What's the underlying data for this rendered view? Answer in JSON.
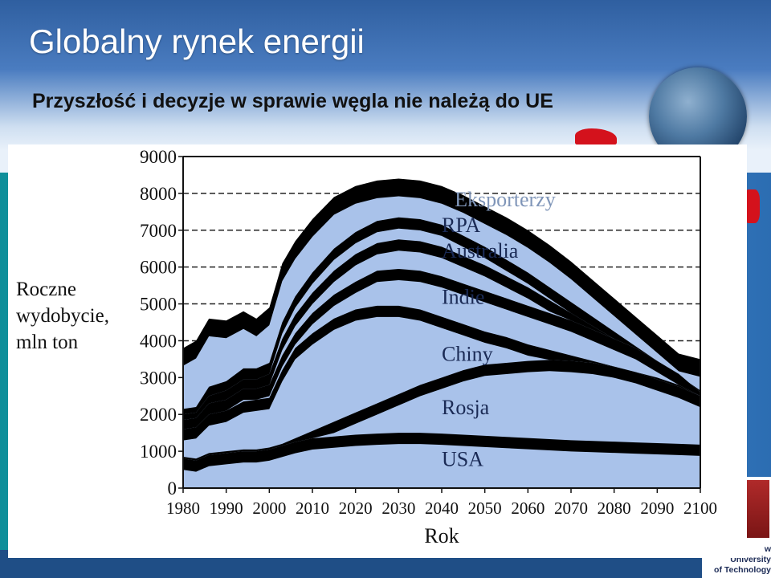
{
  "slide": {
    "title": "Globalny rynek energii",
    "subtitle": "Przyszłość i decyzje w sprawie węgla nie należą do UE",
    "logo_text": [
      "w",
      "University",
      "of Technology"
    ],
    "colors": {
      "fill": "#a9c2ea",
      "band": "#000000",
      "accent": "#d4121c"
    }
  },
  "chart_data": {
    "type": "area",
    "title": "",
    "xlabel": "Rok",
    "ylabel": "Roczne\nwydobycie,\nmln ton",
    "xlim": [
      1980,
      2100
    ],
    "ylim": [
      0,
      9000
    ],
    "xticks": [
      1980,
      1990,
      2000,
      2010,
      2020,
      2030,
      2040,
      2050,
      2060,
      2070,
      2080,
      2090,
      2100
    ],
    "yticks": [
      0,
      1000,
      2000,
      3000,
      4000,
      5000,
      6000,
      7000,
      8000,
      9000
    ],
    "grid": "dashed horizontal",
    "x": [
      1980,
      1983,
      1986,
      1990,
      1994,
      1997,
      2000,
      2003,
      2006,
      2010,
      2015,
      2020,
      2025,
      2030,
      2035,
      2040,
      2045,
      2050,
      2055,
      2060,
      2065,
      2070,
      2075,
      2080,
      2085,
      2090,
      2095,
      2100
    ],
    "series": [
      {
        "name": "USA",
        "values": [
          800,
          750,
          900,
          950,
          1000,
          1000,
          1050,
          1150,
          1250,
          1350,
          1400,
          1450,
          1480,
          1500,
          1500,
          1480,
          1450,
          1420,
          1390,
          1360,
          1330,
          1300,
          1280,
          1260,
          1240,
          1220,
          1200,
          1180
        ]
      },
      {
        "name": "Rosja",
        "values": [
          850,
          800,
          950,
          1000,
          1050,
          1050,
          1100,
          1200,
          1350,
          1550,
          1800,
          2050,
          2300,
          2550,
          2800,
          3000,
          3200,
          3350,
          3400,
          3450,
          3480,
          3450,
          3400,
          3300,
          3150,
          2950,
          2750,
          2500
        ]
      },
      {
        "name": "Chiny",
        "values": [
          1600,
          1650,
          2000,
          2100,
          2350,
          2400,
          2450,
          3200,
          3800,
          4200,
          4600,
          4850,
          4950,
          4950,
          4850,
          4650,
          4450,
          4250,
          4100,
          3900,
          3750,
          3600,
          3450,
          3300,
          3150,
          3000,
          2800,
          2500
        ]
      },
      {
        "name": "Indie",
        "values": [
          1850,
          1900,
          2300,
          2400,
          2700,
          2700,
          2800,
          3600,
          4200,
          4750,
          5250,
          5600,
          5900,
          5950,
          5900,
          5750,
          5550,
          5350,
          5150,
          4950,
          4750,
          4550,
          4300,
          4050,
          3800,
          3450,
          3100,
          2600
        ]
      },
      {
        "name": "Australia",
        "values": [
          2000,
          2050,
          2500,
          2650,
          2950,
          2950,
          3100,
          4050,
          4700,
          5300,
          5900,
          6350,
          6650,
          6750,
          6700,
          6550,
          6300,
          6050,
          5750,
          5450,
          5100,
          4750,
          4400,
          4050,
          3700,
          3350,
          3000,
          2600
        ]
      },
      {
        "name": "RPA",
        "values": [
          2150,
          2200,
          2750,
          2900,
          3250,
          3250,
          3400,
          4500,
          5200,
          5850,
          6500,
          6950,
          7250,
          7350,
          7300,
          7150,
          6850,
          6550,
          6200,
          5850,
          5450,
          5050,
          4650,
          4250,
          3850,
          3450,
          3050,
          2650
        ]
      },
      {
        "name": "Eksporterzy",
        "values": [
          3800,
          4000,
          4600,
          4550,
          4800,
          4600,
          4900,
          6100,
          6700,
          7300,
          7900,
          8200,
          8350,
          8400,
          8350,
          8200,
          7950,
          7650,
          7350,
          7000,
          6600,
          6150,
          5650,
          5150,
          4650,
          4150,
          3650,
          3500
        ]
      }
    ],
    "series_labels": [
      {
        "name": "Eksporterzy",
        "x": 2043,
        "y": 7650
      },
      {
        "name": "RPA",
        "x": 2040,
        "y": 6950
      },
      {
        "name": "Australia",
        "x": 2040,
        "y": 6250
      },
      {
        "name": "Indie",
        "x": 2040,
        "y": 5000
      },
      {
        "name": "Chiny",
        "x": 2040,
        "y": 3450
      },
      {
        "name": "Rosja",
        "x": 2040,
        "y": 2000
      },
      {
        "name": "USA",
        "x": 2040,
        "y": 600
      }
    ]
  }
}
